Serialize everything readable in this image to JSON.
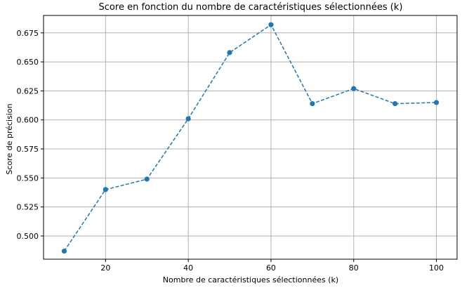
{
  "chart_data": {
    "type": "line",
    "title": "Score en fonction du nombre de caractéristiques sélectionnées (k)",
    "xlabel": "Nombre de caractéristiques sélectionnées (k)",
    "ylabel": "Score de précision",
    "x": [
      10,
      20,
      30,
      40,
      50,
      60,
      70,
      80,
      90,
      100
    ],
    "series": [
      {
        "values": [
          0.487,
          0.54,
          0.549,
          0.601,
          0.658,
          0.682,
          0.614,
          0.627,
          0.614,
          0.615
        ]
      }
    ],
    "xlim": [
      5,
      105
    ],
    "ylim": [
      0.48,
      0.69
    ],
    "xticks": [
      20,
      40,
      60,
      80,
      100
    ],
    "xtick_labels": [
      "20",
      "40",
      "60",
      "80",
      "100"
    ],
    "yticks": [
      0.5,
      0.525,
      0.55,
      0.575,
      0.6,
      0.625,
      0.65,
      0.675
    ],
    "ytick_labels": [
      "0.500",
      "0.525",
      "0.550",
      "0.575",
      "0.600",
      "0.625",
      "0.650",
      "0.675"
    ],
    "grid": true,
    "line_style": "dashed",
    "marker": "circle",
    "color": "#1f77b4"
  }
}
